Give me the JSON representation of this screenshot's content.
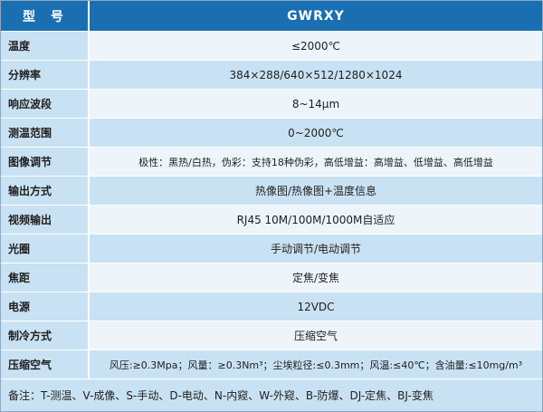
{
  "header": {
    "label": "型 号",
    "value": "GWRXY"
  },
  "rows": [
    {
      "label": "温度",
      "value": "≤2000℃"
    },
    {
      "label": "分辨率",
      "value": "384×288/640×512/1280×1024"
    },
    {
      "label": "响应波段",
      "value": "8~14μm"
    },
    {
      "label": "测温范围",
      "value": "0~2000℃"
    },
    {
      "label": "图像调节",
      "value": "极性：黑热/白热，伪彩：支持18种伪彩，高低增益：高增益、低增益、高低增益"
    },
    {
      "label": "输出方式",
      "value": "热像图/热像图+温度信息"
    },
    {
      "label": "视频输出",
      "value": "RJ45 10M/100M/1000M自适应"
    },
    {
      "label": "光圈",
      "value": "手动调节/电动调节"
    },
    {
      "label": "焦距",
      "value": "定焦/变焦"
    },
    {
      "label": "电源",
      "value": "12VDC"
    },
    {
      "label": "制冷方式",
      "value": "压缩空气"
    },
    {
      "label": "压缩空气",
      "value": "风压:≥0.3Mpa；风量：≥0.3Nm³；尘埃粒径:≤0.3mm；风温:≤40℃；含油量:≤10mg/m³"
    }
  ],
  "note": "备注：T-测温、V-成像、S-手动、D-电动、N-内窥、W-外窥、B-防爆、DJ-定焦、BJ-变焦",
  "colors": {
    "header": "#1a6fb2",
    "label_bg": "#c9e2f3",
    "light_bg": "#edf5fb",
    "border": "#8ea7c2"
  }
}
